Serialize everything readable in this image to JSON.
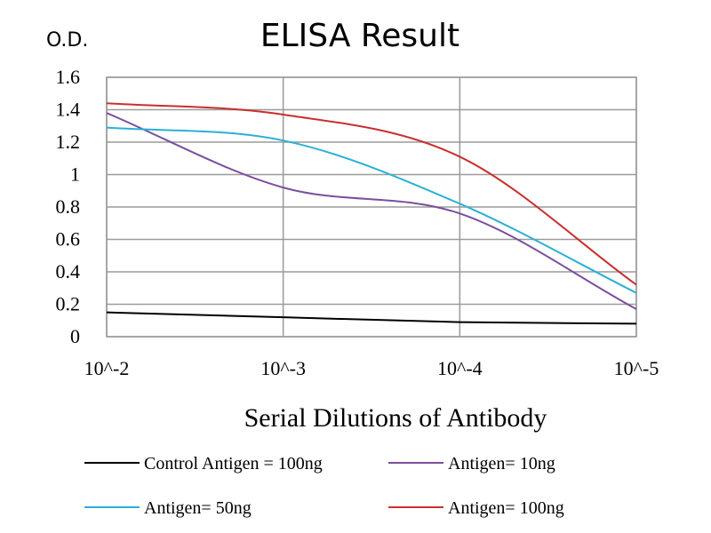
{
  "chart_data": {
    "type": "line",
    "title": "ELISA Result",
    "ylabel": "O.D.",
    "xlabel": "Serial Dilutions  of Antibody",
    "x": [
      "10^-2",
      "10^-3",
      "10^-4",
      "10^-5"
    ],
    "x_ticks": [
      "10^-2",
      "10^-3",
      "10^-4",
      "10^-5"
    ],
    "y_ticks": [
      "0",
      "0.2",
      "0.4",
      "0.6",
      "0.8",
      "1",
      "1.2",
      "1.4",
      "1.6"
    ],
    "ylim": [
      0,
      1.6
    ],
    "grid": true,
    "legend_position": "bottom",
    "series": [
      {
        "name": "Control Antigen = 100ng",
        "color": "#000000",
        "values": [
          0.15,
          0.12,
          0.09,
          0.08
        ]
      },
      {
        "name": "Antigen= 10ng",
        "color": "#7a4fa0",
        "values": [
          1.38,
          0.92,
          0.76,
          0.17
        ]
      },
      {
        "name": "Antigen= 50ng",
        "color": "#2bb0d6",
        "values": [
          1.29,
          1.21,
          0.82,
          0.27
        ]
      },
      {
        "name": "Antigen= 100ng",
        "color": "#c8302e",
        "values": [
          1.44,
          1.37,
          1.11,
          0.32
        ]
      }
    ]
  }
}
